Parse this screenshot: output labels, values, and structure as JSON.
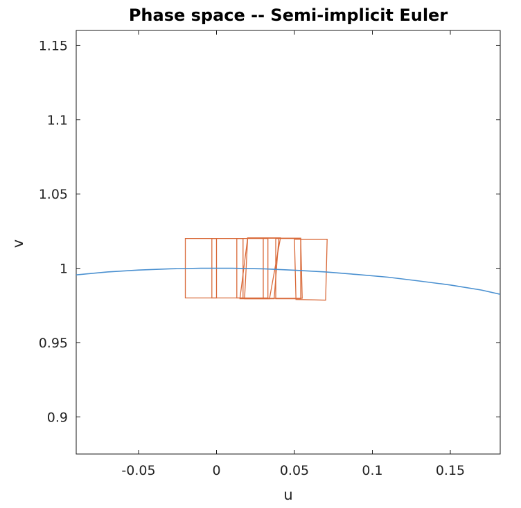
{
  "chart_data": {
    "type": "line",
    "title": "Phase space -- Semi-implicit Euler",
    "xlabel": "u",
    "ylabel": "v",
    "xlim": [
      -0.09,
      0.182
    ],
    "ylim": [
      0.875,
      1.16
    ],
    "xticks": [
      -0.05,
      0,
      0.05,
      0.1,
      0.15
    ],
    "xtick_labels": [
      "-0.05",
      "0",
      "0.05",
      "0.1",
      "0.15"
    ],
    "yticks": [
      0.9,
      0.95,
      1,
      1.05,
      1.1,
      1.15
    ],
    "ytick_labels": [
      "0.9",
      "0.95",
      "1",
      "1.05",
      "1.1",
      "1.15"
    ],
    "grid": false,
    "series": [
      {
        "color": "#4a90d0",
        "x": [
          -0.09,
          -0.07,
          -0.05,
          -0.03,
          -0.01,
          0,
          0.01,
          0.03,
          0.05,
          0.07,
          0.09,
          0.11,
          0.13,
          0.15,
          0.17,
          0.182
        ],
        "y": [
          0.9955,
          0.9975,
          0.9988,
          0.9996,
          1.0,
          1.0,
          1.0,
          0.9996,
          0.9987,
          0.9975,
          0.9958,
          0.994,
          0.9914,
          0.9887,
          0.9853,
          0.9825
        ]
      }
    ],
    "boxes": {
      "color": "#d96a3a",
      "items": [
        [
          [
            -0.02,
            1.02
          ],
          [
            0.0,
            1.02
          ],
          [
            0.0,
            0.98
          ],
          [
            -0.02,
            0.98
          ]
        ],
        [
          [
            -0.003,
            1.02
          ],
          [
            0.017,
            1.02
          ],
          [
            0.017,
            0.98
          ],
          [
            -0.003,
            0.98
          ]
        ],
        [
          [
            0.013,
            1.02
          ],
          [
            0.033,
            1.02
          ],
          [
            0.033,
            0.98
          ],
          [
            0.013,
            0.98
          ]
        ],
        [
          [
            0.02,
            1.0205
          ],
          [
            0.04,
            1.0205
          ],
          [
            0.037,
            0.9795
          ],
          [
            0.018,
            0.9795
          ]
        ],
        [
          [
            0.02,
            1.0205
          ],
          [
            0.041,
            1.0205
          ],
          [
            0.034,
            0.9795
          ],
          [
            0.015,
            0.9795
          ]
        ],
        [
          [
            0.03,
            1.0202
          ],
          [
            0.054,
            1.0202
          ],
          [
            0.055,
            0.9798
          ],
          [
            0.03,
            0.9798
          ]
        ],
        [
          [
            0.038,
            1.02
          ],
          [
            0.054,
            1.02
          ],
          [
            0.054,
            0.9795
          ],
          [
            0.038,
            0.9795
          ]
        ],
        [
          [
            0.05,
            1.0195
          ],
          [
            0.071,
            1.0195
          ],
          [
            0.07,
            0.9785
          ],
          [
            0.051,
            0.979
          ]
        ]
      ]
    }
  }
}
